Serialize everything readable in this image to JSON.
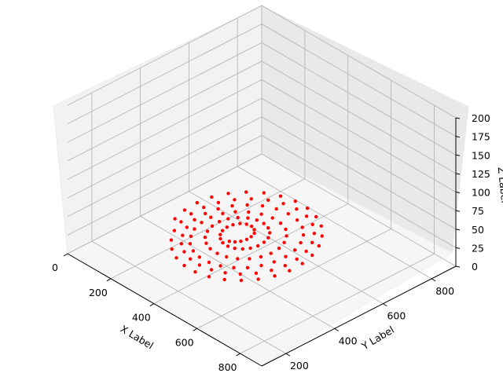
{
  "chart_data": {
    "type": "scatter",
    "projection": "3d",
    "title": "",
    "xlabel": "X Label",
    "ylabel": "Y Label",
    "zlabel": "Z Label",
    "xlim": [
      0,
      900
    ],
    "ylim": [
      100,
      900
    ],
    "zlim": [
      0,
      200
    ],
    "x_ticks": [
      "0",
      "200",
      "400",
      "600",
      "800"
    ],
    "y_ticks": [
      "200",
      "400",
      "600",
      "800"
    ],
    "z_ticks": [
      "0",
      "25",
      "50",
      "75",
      "100",
      "125",
      "150",
      "175",
      "200"
    ],
    "grid": true,
    "marker_color": "#ff0000",
    "series": [
      {
        "description": "red points forming a flat spiral at z = 0",
        "z": 0,
        "points": [
          [
            300,
            500
          ],
          [
            315,
            510
          ],
          [
            325,
            525
          ],
          [
            330,
            545
          ],
          [
            328,
            565
          ],
          [
            320,
            585
          ],
          [
            305,
            598
          ],
          [
            285,
            605
          ],
          [
            265,
            602
          ],
          [
            248,
            590
          ],
          [
            238,
            570
          ],
          [
            235,
            548
          ],
          [
            240,
            525
          ],
          [
            252,
            505
          ],
          [
            270,
            490
          ],
          [
            292,
            480
          ],
          [
            318,
            478
          ],
          [
            342,
            485
          ],
          [
            362,
            500
          ],
          [
            375,
            520
          ],
          [
            382,
            545
          ],
          [
            380,
            572
          ],
          [
            370,
            598
          ],
          [
            352,
            620
          ],
          [
            328,
            635
          ],
          [
            300,
            642
          ],
          [
            270,
            640
          ],
          [
            242,
            628
          ],
          [
            218,
            608
          ],
          [
            202,
            582
          ],
          [
            195,
            552
          ],
          [
            198,
            520
          ],
          [
            210,
            490
          ],
          [
            230,
            462
          ],
          [
            258,
            442
          ],
          [
            290,
            430
          ],
          [
            325,
            428
          ],
          [
            360,
            435
          ],
          [
            392,
            452
          ],
          [
            418,
            478
          ],
          [
            435,
            510
          ],
          [
            442,
            545
          ],
          [
            438,
            582
          ],
          [
            425,
            615
          ],
          [
            402,
            645
          ],
          [
            372,
            668
          ],
          [
            335,
            680
          ],
          [
            295,
            682
          ],
          [
            255,
            672
          ],
          [
            218,
            652
          ],
          [
            188,
            624
          ],
          [
            168,
            590
          ],
          [
            158,
            550
          ],
          [
            160,
            510
          ],
          [
            172,
            470
          ],
          [
            195,
            435
          ],
          [
            225,
            405
          ],
          [
            262,
            385
          ],
          [
            302,
            375
          ],
          [
            345,
            376
          ],
          [
            385,
            388
          ],
          [
            422,
            410
          ],
          [
            452,
            440
          ],
          [
            473,
            478
          ],
          [
            485,
            520
          ],
          [
            488,
            565
          ],
          [
            480,
            610
          ],
          [
            462,
            650
          ],
          [
            435,
            685
          ],
          [
            400,
            712
          ],
          [
            358,
            728
          ],
          [
            312,
            732
          ],
          [
            265,
            725
          ],
          [
            222,
            706
          ],
          [
            185,
            676
          ],
          [
            156,
            640
          ],
          [
            138,
            598
          ],
          [
            130,
            552
          ],
          [
            133,
            505
          ],
          [
            148,
            460
          ],
          [
            173,
            420
          ],
          [
            206,
            386
          ],
          [
            246,
            362
          ],
          [
            290,
            348
          ],
          [
            336,
            345
          ],
          [
            382,
            353
          ],
          [
            425,
            372
          ],
          [
            463,
            400
          ],
          [
            494,
            438
          ],
          [
            515,
            482
          ],
          [
            525,
            530
          ],
          [
            523,
            580
          ],
          [
            510,
            630
          ],
          [
            486,
            676
          ],
          [
            452,
            715
          ],
          [
            410,
            745
          ],
          [
            362,
            763
          ],
          [
            310,
            768
          ],
          [
            258,
            760
          ],
          [
            210,
            740
          ],
          [
            168,
            708
          ],
          [
            135,
            668
          ],
          [
            112,
            622
          ],
          [
            100,
            572
          ],
          [
            100,
            520
          ],
          [
            112,
            468
          ],
          [
            135,
            420
          ],
          [
            168,
            378
          ],
          [
            208,
            345
          ],
          [
            255,
            322
          ],
          [
            305,
            310
          ],
          [
            356,
            310
          ],
          [
            406,
            322
          ],
          [
            452,
            345
          ],
          [
            492,
            378
          ],
          [
            524,
            420
          ],
          [
            546,
            468
          ],
          [
            556,
            520
          ],
          [
            554,
            575
          ],
          [
            540,
            628
          ],
          [
            515,
            678
          ],
          [
            480,
            722
          ],
          [
            436,
            758
          ],
          [
            385,
            782
          ],
          [
            330,
            795
          ],
          [
            274,
            795
          ],
          [
            220,
            782
          ],
          [
            170,
            758
          ],
          [
            128,
            722
          ],
          [
            95,
            678
          ],
          [
            74,
            628
          ],
          [
            66,
            575
          ],
          [
            70,
            520
          ],
          [
            86,
            466
          ]
        ]
      }
    ]
  }
}
